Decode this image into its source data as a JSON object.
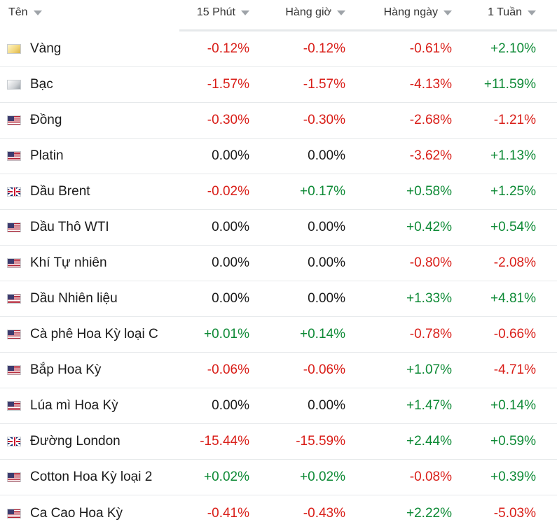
{
  "colors": {
    "negative": "#d91e18",
    "positive": "#0e8a36",
    "neutral": "#1a1a1a"
  },
  "headers": {
    "name": "Tên",
    "m15": "15 Phút",
    "hourly": "Hàng giờ",
    "daily": "Hàng ngày",
    "weekly": "1 Tuần"
  },
  "rows": [
    {
      "flag": "gold-icon",
      "name": "Vàng",
      "m15": "-0.12%",
      "hourly": "-0.12%",
      "daily": "-0.61%",
      "weekly": "+2.10%"
    },
    {
      "flag": "silver-icon",
      "name": "Bạc",
      "m15": "-1.57%",
      "hourly": "-1.57%",
      "daily": "-4.13%",
      "weekly": "+11.59%"
    },
    {
      "flag": "us-flag-icon",
      "name": "Đồng",
      "m15": "-0.30%",
      "hourly": "-0.30%",
      "daily": "-2.68%",
      "weekly": "-1.21%"
    },
    {
      "flag": "us-flag-icon",
      "name": "Platin",
      "m15": "0.00%",
      "hourly": "0.00%",
      "daily": "-3.62%",
      "weekly": "+1.13%"
    },
    {
      "flag": "uk-flag-icon",
      "name": "Dầu Brent",
      "m15": "-0.02%",
      "hourly": "+0.17%",
      "daily": "+0.58%",
      "weekly": "+1.25%"
    },
    {
      "flag": "us-flag-icon",
      "name": "Dầu Thô WTI",
      "m15": "0.00%",
      "hourly": "0.00%",
      "daily": "+0.42%",
      "weekly": "+0.54%"
    },
    {
      "flag": "us-flag-icon",
      "name": "Khí Tự nhiên",
      "m15": "0.00%",
      "hourly": "0.00%",
      "daily": "-0.80%",
      "weekly": "-2.08%"
    },
    {
      "flag": "us-flag-icon",
      "name": "Dầu Nhiên liệu",
      "m15": "0.00%",
      "hourly": "0.00%",
      "daily": "+1.33%",
      "weekly": "+4.81%"
    },
    {
      "flag": "us-flag-icon",
      "name": "Cà phê Hoa Kỳ loại C",
      "m15": "+0.01%",
      "hourly": "+0.14%",
      "daily": "-0.78%",
      "weekly": "-0.66%"
    },
    {
      "flag": "us-flag-icon",
      "name": "Bắp Hoa Kỳ",
      "m15": "-0.06%",
      "hourly": "-0.06%",
      "daily": "+1.07%",
      "weekly": "-4.71%"
    },
    {
      "flag": "us-flag-icon",
      "name": "Lúa mì Hoa Kỳ",
      "m15": "0.00%",
      "hourly": "0.00%",
      "daily": "+1.47%",
      "weekly": "+0.14%"
    },
    {
      "flag": "uk-flag-icon",
      "name": "Đường London",
      "m15": "-15.44%",
      "hourly": "-15.59%",
      "daily": "+2.44%",
      "weekly": "+0.59%"
    },
    {
      "flag": "us-flag-icon",
      "name": "Cotton Hoa Kỳ loại 2",
      "m15": "+0.02%",
      "hourly": "+0.02%",
      "daily": "-0.08%",
      "weekly": "+0.39%"
    },
    {
      "flag": "us-flag-icon",
      "name": "Ca Cao Hoa Kỳ",
      "m15": "-0.41%",
      "hourly": "-0.43%",
      "daily": "+2.22%",
      "weekly": "-5.03%"
    }
  ]
}
